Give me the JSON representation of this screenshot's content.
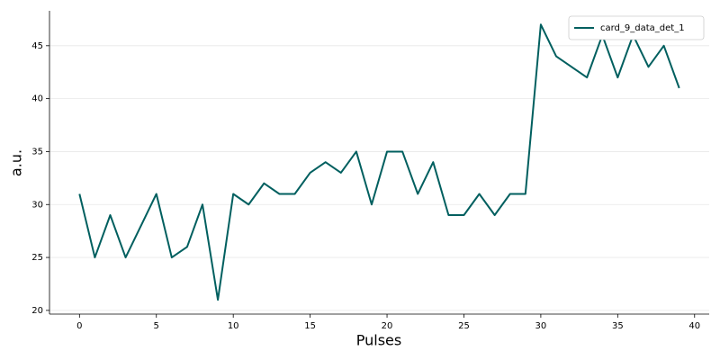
{
  "chart_data": {
    "type": "line",
    "x_label": "Pulses",
    "y_label": "a.u.",
    "x": [
      0,
      1,
      2,
      3,
      4,
      5,
      6,
      7,
      8,
      9,
      10,
      11,
      12,
      13,
      14,
      15,
      16,
      17,
      18,
      19,
      20,
      21,
      22,
      23,
      24,
      25,
      26,
      27,
      28,
      29,
      30,
      31,
      32,
      33,
      34,
      35,
      36,
      37,
      38,
      39
    ],
    "series": [
      {
        "name": "card_9_data_det_1",
        "color": "#005f5f",
        "values": [
          31,
          25,
          29,
          25,
          28,
          31,
          25,
          26,
          30,
          21,
          31,
          30,
          32,
          31,
          31,
          33,
          34,
          33,
          35,
          30,
          35,
          35,
          31,
          34,
          29,
          29,
          31,
          29,
          31,
          31,
          47,
          44,
          43,
          42,
          46,
          42,
          46,
          43,
          45,
          41
        ]
      }
    ],
    "xlim": [
      -1.95,
      40.95
    ],
    "ylim": [
      19.65,
      48.3
    ],
    "xticks": [
      0,
      5,
      10,
      15,
      20,
      25,
      30,
      35,
      40
    ],
    "yticks": [
      20,
      25,
      30,
      35,
      40,
      45
    ],
    "grid": true,
    "legend": "upper right"
  }
}
